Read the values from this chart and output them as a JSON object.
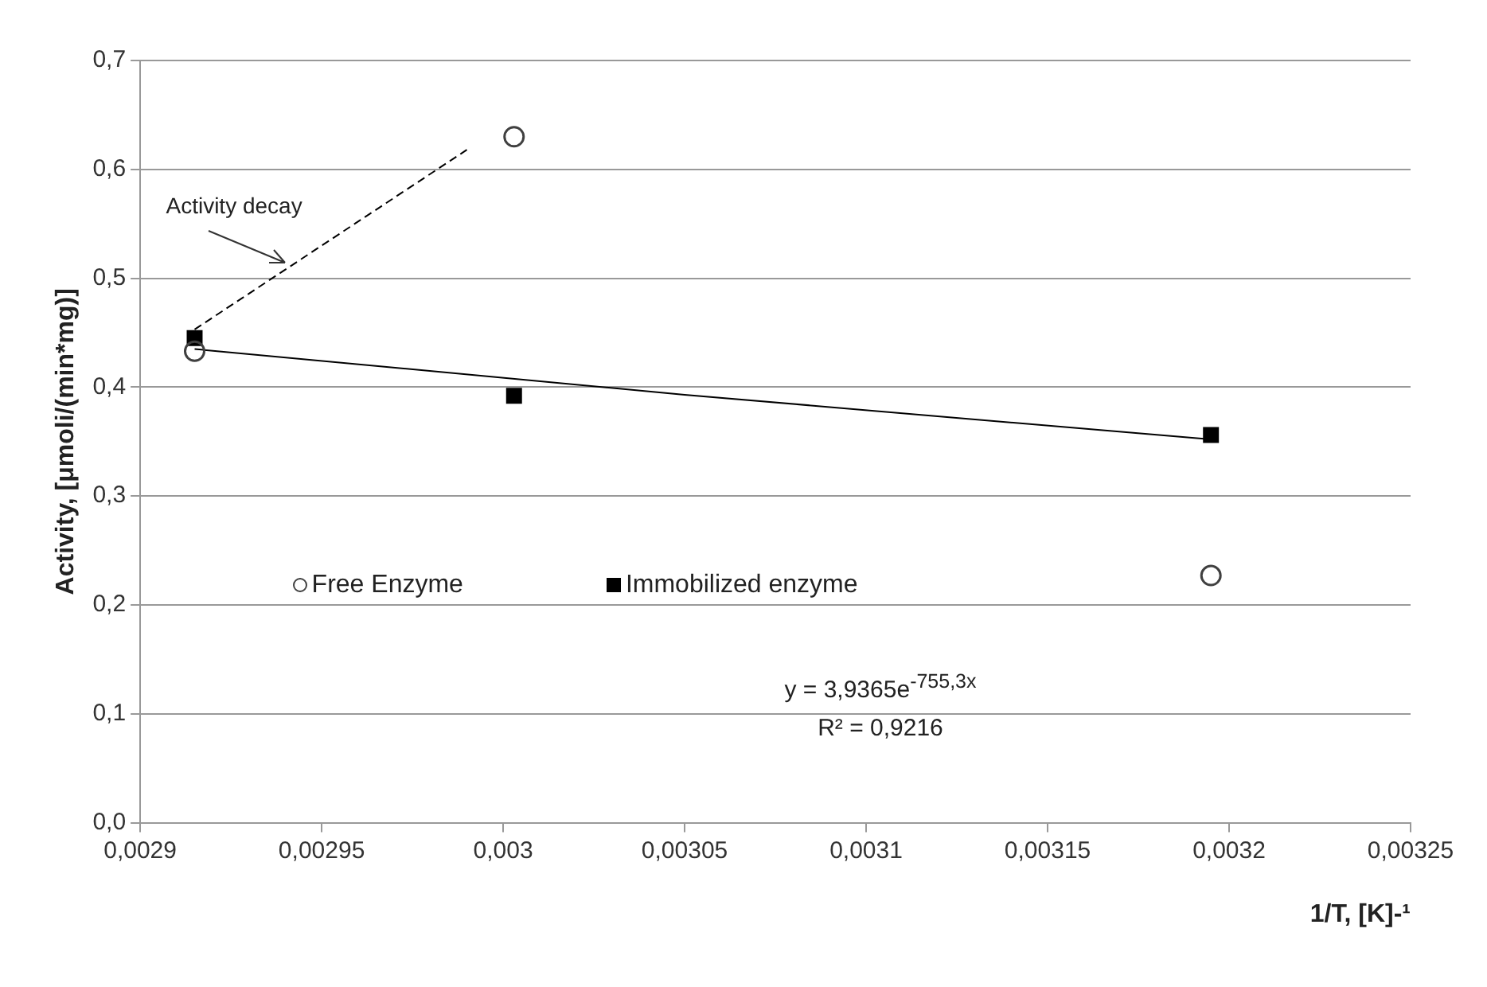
{
  "chart_data": {
    "type": "scatter",
    "xlabel": "1/T, [K]-¹",
    "ylabel": "Activity, [μmoli/(min*mg)]",
    "xlim": [
      0.0029,
      0.00325
    ],
    "xticks": [
      {
        "value": 0.0029,
        "label": "0,0029"
      },
      {
        "value": 0.00295,
        "label": "0,00295"
      },
      {
        "value": 0.003,
        "label": "0,003"
      },
      {
        "value": 0.00305,
        "label": "0,00305"
      },
      {
        "value": 0.0031,
        "label": "0,0031"
      },
      {
        "value": 0.00315,
        "label": "0,00315"
      },
      {
        "value": 0.0032,
        "label": "0,0032"
      },
      {
        "value": 0.00325,
        "label": "0,00325"
      }
    ],
    "ylim": [
      0,
      0.7
    ],
    "yticks": [
      {
        "value": 0,
        "label": "0,0"
      },
      {
        "value": 0.1,
        "label": "0,1"
      },
      {
        "value": 0.2,
        "label": "0,2"
      },
      {
        "value": 0.3,
        "label": "0,3"
      },
      {
        "value": 0.4,
        "label": "0,4"
      },
      {
        "value": 0.5,
        "label": "0,5"
      },
      {
        "value": 0.6,
        "label": "0,6"
      },
      {
        "value": 0.7,
        "label": "0,7"
      }
    ],
    "grid": "y",
    "legend": "left",
    "series": [
      {
        "name": "Free Enzyme",
        "type": "scatter",
        "marker": "circle",
        "color": "#404040",
        "x": [
          0.002915,
          0.003003,
          0.003195
        ],
        "values": [
          0.433,
          0.63,
          0.227
        ]
      },
      {
        "name": "Immobilized enzyme",
        "type": "scatter",
        "marker": "square",
        "color": "#000000",
        "x": [
          0.002915,
          0.003003,
          0.003195
        ],
        "values": [
          0.445,
          0.392,
          0.356
        ]
      },
      {
        "type": "line",
        "marker": "none",
        "line_style": "solid",
        "color": "#000000",
        "x": [
          0.002915,
          0.00305,
          0.003195
        ],
        "values": [
          0.435,
          0.393,
          0.352
        ]
      },
      {
        "type": "line",
        "marker": "none",
        "line_style": "dashed",
        "color": "#000000",
        "x": [
          0.002915,
          0.00299
        ],
        "values": [
          0.453,
          0.618
        ]
      }
    ],
    "annotations": [
      {
        "text": "Activity decay",
        "x": 0.00294,
        "y": 0.515
      },
      "y = 3,9365e$^{-755,3x}$",
      "R² = 0,9216"
    ]
  }
}
